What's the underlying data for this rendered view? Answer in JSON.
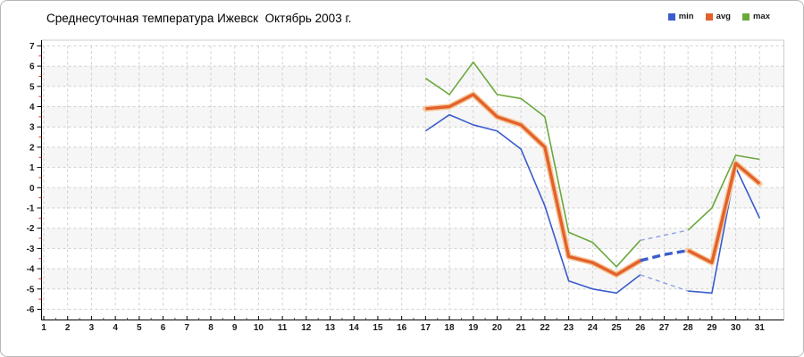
{
  "chart_data": {
    "type": "line",
    "title": "Среднесуточная температура Ижевск  Октябрь 2003 г.",
    "x_axis": {
      "min": 1,
      "max": 31,
      "major_step": 1,
      "minor_step": 0.5,
      "tick_labels": [
        1,
        2,
        3,
        4,
        5,
        6,
        7,
        8,
        9,
        10,
        11,
        12,
        13,
        14,
        15,
        16,
        17,
        18,
        19,
        20,
        21,
        22,
        23,
        24,
        25,
        26,
        27,
        28,
        29,
        30,
        31
      ]
    },
    "y_axis": {
      "min": -6,
      "max": 7,
      "major_step": 1,
      "minor_step": 0.5,
      "tick_labels": [
        7,
        6,
        5,
        4,
        3,
        2,
        1,
        0,
        -1,
        -2,
        -3,
        -4,
        -5,
        -6
      ]
    },
    "grid": true,
    "legend_position": "top-right",
    "series": [
      {
        "name": "max",
        "color": "#6aa83c",
        "width": 1.6,
        "segments": [
          {
            "style": "solid",
            "points": [
              [
                17,
                5.4
              ],
              [
                18,
                4.6
              ],
              [
                19,
                6.2
              ],
              [
                20,
                4.6
              ],
              [
                21,
                4.4
              ],
              [
                22,
                3.5
              ],
              [
                23,
                -2.2
              ],
              [
                24,
                -2.7
              ],
              [
                25,
                -3.9
              ],
              [
                26,
                -2.6
              ]
            ]
          },
          {
            "style": "dashed",
            "color": "#8ea2e2",
            "width": 1.4,
            "points": [
              [
                26,
                -2.6
              ],
              [
                28,
                -2.1
              ]
            ]
          },
          {
            "style": "solid",
            "points": [
              [
                28,
                -2.1
              ],
              [
                29,
                -1.0
              ],
              [
                30,
                1.6
              ],
              [
                31,
                1.4
              ]
            ]
          }
        ]
      },
      {
        "name": "min",
        "color": "#3a5ccc",
        "width": 1.6,
        "segments": [
          {
            "style": "solid",
            "points": [
              [
                17,
                2.8
              ],
              [
                18,
                3.6
              ],
              [
                19,
                3.1
              ],
              [
                20,
                2.8
              ],
              [
                21,
                1.9
              ],
              [
                22,
                -0.9
              ],
              [
                23,
                -4.6
              ],
              [
                24,
                -5.0
              ],
              [
                25,
                -5.2
              ],
              [
                26,
                -4.3
              ]
            ]
          },
          {
            "style": "dashed",
            "color": "#8ea2e2",
            "width": 1.4,
            "points": [
              [
                26,
                -4.3
              ],
              [
                28,
                -5.1
              ]
            ]
          },
          {
            "style": "solid",
            "points": [
              [
                28,
                -5.1
              ],
              [
                29,
                -5.2
              ],
              [
                30,
                1.0
              ],
              [
                31,
                -1.5
              ]
            ]
          }
        ]
      },
      {
        "name": "avg",
        "color": "#e2622b",
        "halo": "#f6c79b",
        "width": 3.4,
        "segments": [
          {
            "style": "solid",
            "points": [
              [
                17,
                3.9
              ],
              [
                18,
                4.0
              ],
              [
                19,
                4.6
              ],
              [
                20,
                3.5
              ],
              [
                21,
                3.1
              ],
              [
                22,
                2.0
              ],
              [
                23,
                -3.4
              ],
              [
                24,
                -3.7
              ],
              [
                25,
                -4.3
              ],
              [
                26,
                -3.6
              ]
            ]
          },
          {
            "style": "dashed",
            "color": "#3a5ccc",
            "width": 3.4,
            "points": [
              [
                26,
                -3.6
              ],
              [
                27,
                -3.3
              ],
              [
                28,
                -3.1
              ]
            ]
          },
          {
            "style": "solid",
            "points": [
              [
                28,
                -3.1
              ],
              [
                29,
                -3.7
              ],
              [
                30,
                1.2
              ],
              [
                31,
                0.2
              ]
            ]
          }
        ]
      }
    ],
    "legend_order": [
      "min",
      "avg",
      "max"
    ]
  },
  "colors": {
    "grid": "#cfcfcf",
    "band": "#f6f6f6",
    "axis": "#000000",
    "minor_tick_y": "#cc2222",
    "minor_tick_x": "#555555",
    "tick_label": "#1a1a1a",
    "plot_border": "#cccccc",
    "outer_border": "#b8b8b8"
  }
}
